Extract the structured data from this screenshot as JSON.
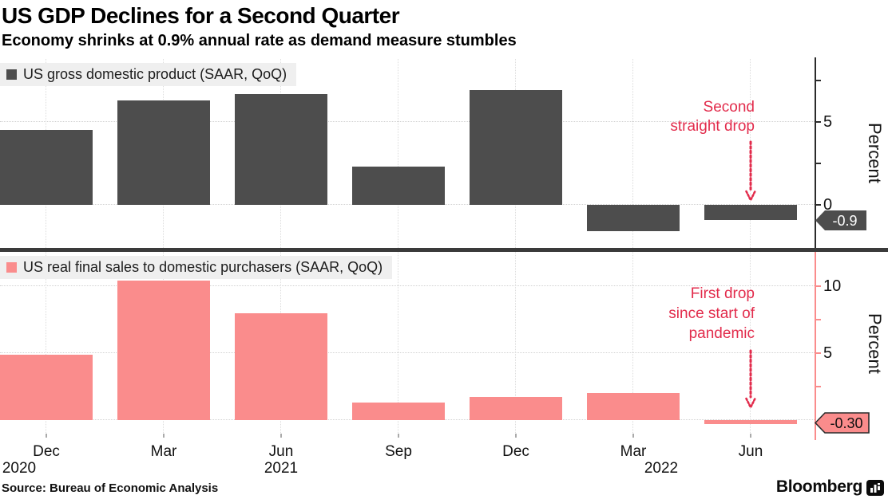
{
  "header": {
    "title": "US GDP Declines for a Second Quarter",
    "subtitle": "Economy shrinks at 0.9% annual rate as demand measure stumbles"
  },
  "panels": [
    {
      "legend": "US gross domestic product (SAAR, QoQ)",
      "annotation_lines": [
        "Second",
        "straight drop"
      ],
      "value_tag": "-0.9",
      "y_axis_label": "Percent"
    },
    {
      "legend": "US real final sales to domestic purchasers (SAAR, QoQ)",
      "annotation_lines": [
        "First drop",
        "since start of",
        "pandemic"
      ],
      "value_tag": "-0.30",
      "y_axis_label": "Percent"
    }
  ],
  "x_axis": {
    "months": [
      "Dec",
      "Mar",
      "Jun",
      "Sep",
      "Dec",
      "Mar",
      "Jun"
    ],
    "years": [
      "2020",
      "2021",
      "2022"
    ]
  },
  "footer": {
    "source": "Source: Bureau of Economic Analysis",
    "brand": "Bloomberg"
  },
  "colors": {
    "gdp_bar": "#4d4d4d",
    "sales_bar": "#fa8c8c",
    "annotation_red": "#e22c4c",
    "axis_dark": "#2b2b2b",
    "axis_pink": "#fa8c8c",
    "grid": "#d2d2d2",
    "legend_bg": "#efefef",
    "divider": "#3a3a3a",
    "tag_dark_bg": "#4d4d4d",
    "tag_dark_text": "#ffffff",
    "tag_pink_bg": "#fa8c8c",
    "tag_pink_text": "#111111"
  },
  "chart_data": [
    {
      "type": "bar",
      "title": "US gross domestic product (SAAR, QoQ)",
      "categories": [
        "Dec 2020",
        "Mar 2021",
        "Jun 2021",
        "Sep 2021",
        "Dec 2021",
        "Mar 2022",
        "Jun 2022"
      ],
      "values": [
        4.5,
        6.3,
        6.7,
        2.3,
        6.9,
        -1.6,
        -0.9
      ],
      "xlabel": "",
      "ylabel": "Percent",
      "ylim": [
        -2.6,
        8.9
      ],
      "yticks_labeled": [
        0,
        5
      ],
      "yticks_minor": [
        2.5,
        7.5
      ],
      "gridlines": [
        0,
        5
      ],
      "grid": "dotted",
      "legend_position": "top-left",
      "bar_color": "#4d4d4d",
      "annotation": "Second straight drop",
      "annotation_points_to": "Jun 2022",
      "last_point_label": "-0.9"
    },
    {
      "type": "bar",
      "title": "US real final sales to domestic purchasers (SAAR, QoQ)",
      "categories": [
        "Dec 2020",
        "Mar 2021",
        "Jun 2021",
        "Sep 2021",
        "Dec 2021",
        "Mar 2022",
        "Jun 2022"
      ],
      "values": [
        4.9,
        10.4,
        8.0,
        1.3,
        1.7,
        2.0,
        -0.3
      ],
      "xlabel": "",
      "ylabel": "Percent",
      "ylim": [
        -1.1,
        12.6
      ],
      "yticks_labeled": [
        5,
        10
      ],
      "yticks_minor": [
        2.5,
        7.5
      ],
      "gridlines": [
        0,
        5,
        10
      ],
      "grid": "dotted",
      "legend_position": "top-left",
      "bar_color": "#fa8c8c",
      "annotation": "First drop since start of pandemic",
      "annotation_points_to": "Jun 2022",
      "last_point_label": "-0.30"
    }
  ]
}
